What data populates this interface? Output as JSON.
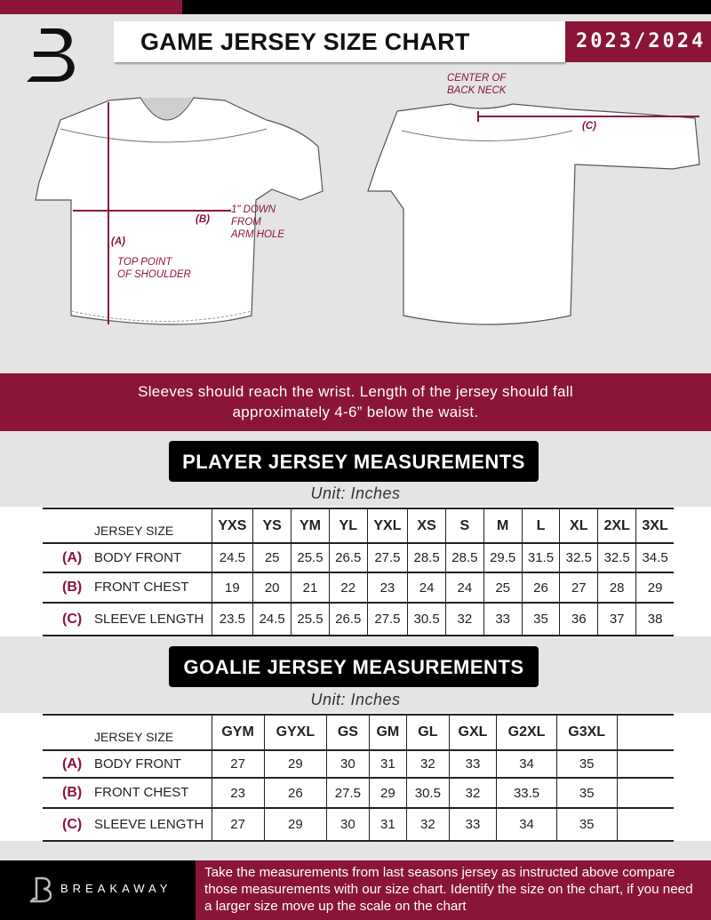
{
  "header": {
    "title": "GAME JERSEY SIZE CHART",
    "season": "2023/2024"
  },
  "diagram": {
    "back_neck_note": "CENTER OF\nBACK NECK",
    "label_a": "(A)",
    "label_b": "(B)",
    "label_c": "(C)",
    "chest_note": "1\" DOWN\nFROM\nARM HOLE",
    "shoulder_note": "TOP POINT\nOF SHOULDER"
  },
  "instruction": "Sleeves should reach the wrist. Length of the jersey should fall approximately 4-6” below the waist.",
  "colors": {
    "accent": "#8a1538",
    "dark": "#000000",
    "background": "#e4e4e5"
  },
  "player": {
    "title": "PLAYER JERSEY MEASUREMENTS",
    "unit": "Unit: Inches",
    "size_header": "JERSEY SIZE",
    "sizes": [
      "YXS",
      "YS",
      "YM",
      "YL",
      "YXL",
      "XS",
      "S",
      "M",
      "L",
      "XL",
      "2XL",
      "3XL"
    ],
    "rows": [
      {
        "letter": "(A)",
        "label": "BODY FRONT",
        "values": [
          "24.5",
          "25",
          "25.5",
          "26.5",
          "27.5",
          "28.5",
          "28.5",
          "29.5",
          "31.5",
          "32.5",
          "32.5",
          "34.5"
        ]
      },
      {
        "letter": "(B)",
        "label": "FRONT CHEST",
        "values": [
          "19",
          "20",
          "21",
          "22",
          "23",
          "24",
          "24",
          "25",
          "26",
          "27",
          "28",
          "29"
        ]
      },
      {
        "letter": "(C)",
        "label": "SLEEVE LENGTH",
        "values": [
          "23.5",
          "24.5",
          "25.5",
          "26.5",
          "27.5",
          "30.5",
          "32",
          "33",
          "35",
          "36",
          "37",
          "38"
        ]
      }
    ]
  },
  "goalie": {
    "title": "GOALIE JERSEY MEASUREMENTS",
    "unit": "Unit: Inches",
    "size_header": "JERSEY SIZE",
    "sizes": [
      "GYM",
      "GYXL",
      "GS",
      "GM",
      "GL",
      "GXL",
      "G2XL",
      "G3XL",
      ""
    ],
    "rows": [
      {
        "letter": "(A)",
        "label": "BODY FRONT",
        "values": [
          "27",
          "29",
          "30",
          "31",
          "32",
          "33",
          "34",
          "35",
          ""
        ]
      },
      {
        "letter": "(B)",
        "label": "FRONT CHEST",
        "values": [
          "23",
          "26",
          "27.5",
          "29",
          "30.5",
          "32",
          "33.5",
          "35",
          ""
        ]
      },
      {
        "letter": "(C)",
        "label": "SLEEVE LENGTH",
        "values": [
          "27",
          "29",
          "30",
          "31",
          "32",
          "33",
          "34",
          "35",
          ""
        ]
      }
    ]
  },
  "footer": {
    "brand": "BREAKAWAY",
    "text": "Take the measurements from last seasons jersey as instructed above compare those measurements  with our size chart. Identify the size on the chart, if you need a larger size move up the scale on the chart"
  }
}
